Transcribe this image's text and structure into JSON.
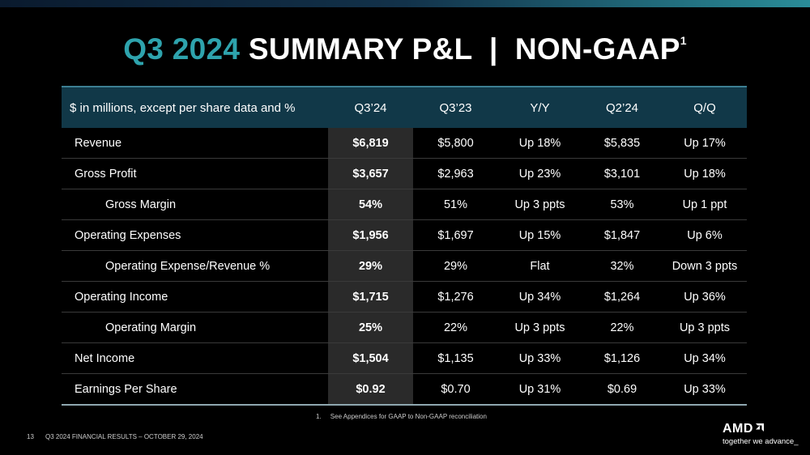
{
  "header": {
    "title_highlight": "Q3 2024",
    "title": "SUMMARY P&L  |  NON-GAAP",
    "title_footnote": "1"
  },
  "table": {
    "columns": [
      "$ in millions, except per share data and %",
      "Q3’24",
      "Q3’23",
      "Y/Y",
      "Q2’24",
      "Q/Q"
    ],
    "rows": [
      {
        "label": "Revenue",
        "indent": false,
        "cells": [
          "$6,819",
          "$5,800",
          "Up 18%",
          "$5,835",
          "Up 17%"
        ]
      },
      {
        "label": "Gross Profit",
        "indent": false,
        "cells": [
          "$3,657",
          "$2,963",
          "Up 23%",
          "$3,101",
          "Up 18%"
        ]
      },
      {
        "label": "Gross Margin",
        "indent": true,
        "cells": [
          "54%",
          "51%",
          "Up 3 ppts",
          "53%",
          "Up 1 ppt"
        ]
      },
      {
        "label": "Operating Expenses",
        "indent": false,
        "cells": [
          "$1,956",
          "$1,697",
          "Up 15%",
          "$1,847",
          "Up 6%"
        ]
      },
      {
        "label": "Operating Expense/Revenue %",
        "indent": true,
        "cells": [
          "29%",
          "29%",
          "Flat",
          "32%",
          "Down 3 ppts"
        ]
      },
      {
        "label": "Operating Income",
        "indent": false,
        "cells": [
          "$1,715",
          "$1,276",
          "Up 34%",
          "$1,264",
          "Up 36%"
        ]
      },
      {
        "label": "Operating Margin",
        "indent": true,
        "cells": [
          "25%",
          "22%",
          "Up 3 ppts",
          "22%",
          "Up 3 ppts"
        ]
      },
      {
        "label": "Net Income",
        "indent": false,
        "cells": [
          "$1,504",
          "$1,135",
          "Up 33%",
          "$1,126",
          "Up 34%"
        ]
      },
      {
        "label": "Earnings Per Share",
        "indent": false,
        "cells": [
          "$0.92",
          "$0.70",
          "Up 31%",
          "$0.69",
          "Up 33%"
        ]
      }
    ]
  },
  "footnote": "1.     See Appendices for GAAP to Non-GAAP reconciliation",
  "footer": {
    "page": "13",
    "text": "Q3 2024 FINANCIAL RESULTS – OCTOBER 29, 2024"
  },
  "logo": {
    "brand": "AMD",
    "tagline": "together we advance_"
  }
}
